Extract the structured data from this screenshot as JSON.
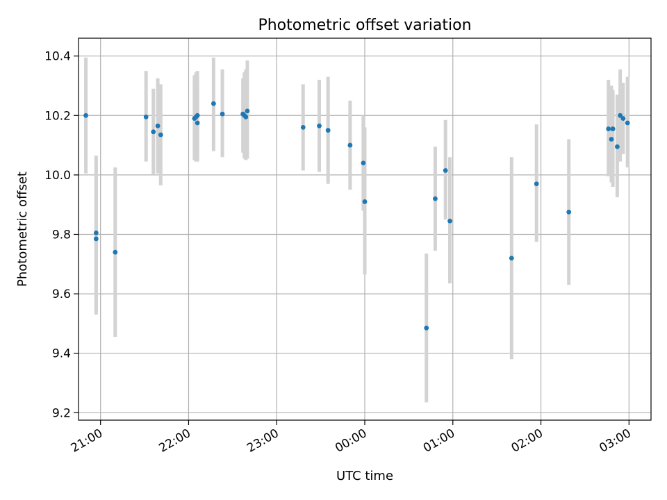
{
  "chart_data": {
    "type": "scatter",
    "title": "Photometric offset variation",
    "xlabel": "UTC time",
    "ylabel": "Photometric offset",
    "x_ticks": [
      "21:00",
      "22:00",
      "23:00",
      "00:00",
      "01:00",
      "02:00",
      "03:00"
    ],
    "y_ticks": [
      "9.2",
      "9.4",
      "9.6",
      "9.8",
      "10.0",
      "10.2",
      "10.4"
    ],
    "xlim": [
      "20:45",
      "03:15"
    ],
    "ylim": [
      9.175,
      10.46
    ],
    "grid": true,
    "point_color": "#1f77b4",
    "errorbar_color": "#d3d3d3",
    "points": [
      {
        "x": "20:50",
        "y": 10.2,
        "lo": 10.005,
        "hi": 10.395
      },
      {
        "x": "20:57",
        "y": 9.805,
        "lo": 9.54,
        "hi": 10.065
      },
      {
        "x": "20:57",
        "y": 9.785,
        "lo": 9.53,
        "hi": 10.045
      },
      {
        "x": "21:10",
        "y": 9.74,
        "lo": 9.455,
        "hi": 10.025
      },
      {
        "x": "21:31",
        "y": 10.195,
        "lo": 10.045,
        "hi": 10.35
      },
      {
        "x": "21:36",
        "y": 10.145,
        "lo": 10.0,
        "hi": 10.29
      },
      {
        "x": "21:39",
        "y": 10.165,
        "lo": 10.005,
        "hi": 10.325
      },
      {
        "x": "21:41",
        "y": 10.135,
        "lo": 9.965,
        "hi": 10.305
      },
      {
        "x": "22:04",
        "y": 10.19,
        "lo": 10.05,
        "hi": 10.335
      },
      {
        "x": "22:05",
        "y": 10.195,
        "lo": 10.045,
        "hi": 10.345
      },
      {
        "x": "22:06",
        "y": 10.2,
        "lo": 10.05,
        "hi": 10.35
      },
      {
        "x": "22:06",
        "y": 10.175,
        "lo": 10.045,
        "hi": 10.31
      },
      {
        "x": "22:17",
        "y": 10.24,
        "lo": 10.08,
        "hi": 10.395
      },
      {
        "x": "22:23",
        "y": 10.205,
        "lo": 10.06,
        "hi": 10.355
      },
      {
        "x": "22:37",
        "y": 10.205,
        "lo": 10.075,
        "hi": 10.325
      },
      {
        "x": "22:38",
        "y": 10.2,
        "lo": 10.055,
        "hi": 10.345
      },
      {
        "x": "22:39",
        "y": 10.195,
        "lo": 10.05,
        "hi": 10.355
      },
      {
        "x": "22:40",
        "y": 10.215,
        "lo": 10.055,
        "hi": 10.385
      },
      {
        "x": "23:18",
        "y": 10.16,
        "lo": 10.015,
        "hi": 10.305
      },
      {
        "x": "23:29",
        "y": 10.165,
        "lo": 10.01,
        "hi": 10.32
      },
      {
        "x": "23:35",
        "y": 10.15,
        "lo": 9.97,
        "hi": 10.33
      },
      {
        "x": "23:50",
        "y": 10.1,
        "lo": 9.95,
        "hi": 10.25
      },
      {
        "x": "23:59",
        "y": 10.04,
        "lo": 9.88,
        "hi": 10.2
      },
      {
        "x": "00:00",
        "y": 9.91,
        "lo": 9.665,
        "hi": 10.16
      },
      {
        "x": "00:42",
        "y": 9.485,
        "lo": 9.235,
        "hi": 9.735
      },
      {
        "x": "00:48",
        "y": 9.92,
        "lo": 9.745,
        "hi": 10.095
      },
      {
        "x": "00:55",
        "y": 10.015,
        "lo": 9.85,
        "hi": 10.185
      },
      {
        "x": "00:58",
        "y": 9.845,
        "lo": 9.635,
        "hi": 10.06
      },
      {
        "x": "01:40",
        "y": 9.72,
        "lo": 9.38,
        "hi": 10.06
      },
      {
        "x": "01:57",
        "y": 9.97,
        "lo": 9.775,
        "hi": 10.17
      },
      {
        "x": "02:19",
        "y": 9.875,
        "lo": 9.63,
        "hi": 10.12
      },
      {
        "x": "02:46",
        "y": 10.155,
        "lo": 9.995,
        "hi": 10.32
      },
      {
        "x": "02:48",
        "y": 10.12,
        "lo": 9.975,
        "hi": 10.3
      },
      {
        "x": "02:49",
        "y": 10.155,
        "lo": 9.96,
        "hi": 10.285
      },
      {
        "x": "02:52",
        "y": 10.095,
        "lo": 9.925,
        "hi": 10.27
      },
      {
        "x": "02:54",
        "y": 10.2,
        "lo": 10.045,
        "hi": 10.355
      },
      {
        "x": "02:56",
        "y": 10.19,
        "lo": 10.07,
        "hi": 10.31
      },
      {
        "x": "02:59",
        "y": 10.175,
        "lo": 10.025,
        "hi": 10.33
      }
    ]
  }
}
